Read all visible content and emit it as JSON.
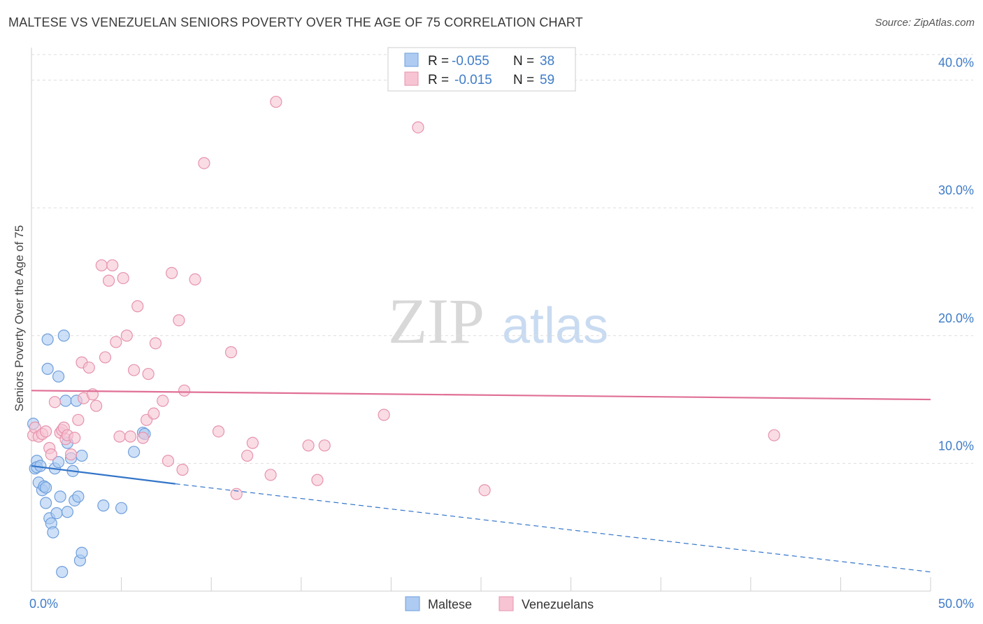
{
  "title": "MALTESE VS VENEZUELAN SENIORS POVERTY OVER THE AGE OF 75 CORRELATION CHART",
  "source": "Source: ZipAtlas.com",
  "watermark": {
    "zip": "ZIP",
    "atlas": "atlas"
  },
  "legend_box": {
    "rows": [
      {
        "r_label": "R =",
        "r_value": "-0.055",
        "n_label": "N =",
        "n_value": "38"
      },
      {
        "r_label": "R =",
        "r_value": "-0.015",
        "n_label": "N =",
        "n_value": "59"
      }
    ]
  },
  "colors": {
    "maltese_fill": "#aecbf2",
    "maltese_stroke": "#6f9fdc",
    "maltese_line": "#3375c9",
    "venezuelan_fill": "#f7c4d3",
    "venezuelan_stroke": "#e693ad",
    "venezuelan_line": "#e06f96",
    "axis_text": "#3f7cc8",
    "grid": "#dddddd"
  },
  "chart_data": {
    "type": "scatter",
    "title": "MALTESE VS VENEZUELAN SENIORS POVERTY OVER THE AGE OF 75 CORRELATION CHART",
    "xlabel": "",
    "ylabel": "Seniors Poverty Over the Age of 75",
    "xlim": [
      0,
      50
    ],
    "ylim": [
      0,
      42
    ],
    "x_tick_labels": [
      "0.0%",
      "50.0%"
    ],
    "y_ticks": [
      10,
      20,
      30,
      40
    ],
    "y_tick_labels": [
      "10.0%",
      "20.0%",
      "30.0%",
      "40.0%"
    ],
    "legend_position": "bottom-center",
    "series": [
      {
        "name": "Maltese",
        "r": -0.055,
        "n": 38,
        "trend": {
          "solid": [
            [
              0,
              9.8
            ],
            [
              8,
              8.4
            ]
          ],
          "dashed": [
            [
              8,
              8.4
            ],
            [
              50,
              1.5
            ]
          ]
        },
        "points": [
          [
            0.1,
            13.1
          ],
          [
            0.2,
            9.6
          ],
          [
            0.3,
            10.2
          ],
          [
            0.3,
            9.7
          ],
          [
            0.4,
            8.5
          ],
          [
            0.5,
            9.8
          ],
          [
            0.6,
            7.9
          ],
          [
            0.7,
            8.2
          ],
          [
            0.8,
            6.9
          ],
          [
            0.8,
            8.1
          ],
          [
            0.9,
            19.7
          ],
          [
            0.9,
            17.4
          ],
          [
            1.0,
            5.7
          ],
          [
            1.1,
            5.3
          ],
          [
            1.2,
            4.6
          ],
          [
            1.3,
            9.6
          ],
          [
            1.4,
            6.1
          ],
          [
            1.5,
            16.8
          ],
          [
            1.5,
            10.1
          ],
          [
            1.6,
            7.4
          ],
          [
            1.7,
            1.5
          ],
          [
            1.8,
            20.0
          ],
          [
            1.9,
            14.9
          ],
          [
            2.0,
            11.6
          ],
          [
            2.0,
            6.2
          ],
          [
            2.2,
            10.4
          ],
          [
            2.3,
            9.4
          ],
          [
            2.4,
            7.1
          ],
          [
            2.5,
            14.9
          ],
          [
            2.6,
            7.4
          ],
          [
            2.7,
            2.4
          ],
          [
            2.8,
            10.6
          ],
          [
            2.8,
            3.0
          ],
          [
            4.0,
            6.7
          ],
          [
            5.0,
            6.5
          ],
          [
            5.7,
            10.9
          ],
          [
            6.2,
            12.4
          ],
          [
            6.3,
            12.3
          ]
        ]
      },
      {
        "name": "Venezuelans",
        "r": -0.015,
        "n": 59,
        "trend": {
          "solid": [
            [
              0,
              15.7
            ],
            [
              50,
              15.0
            ]
          ]
        },
        "points": [
          [
            0.1,
            12.2
          ],
          [
            0.2,
            12.8
          ],
          [
            0.4,
            12.1
          ],
          [
            0.6,
            12.3
          ],
          [
            0.8,
            12.5
          ],
          [
            1.0,
            11.2
          ],
          [
            1.1,
            10.7
          ],
          [
            1.3,
            14.8
          ],
          [
            1.6,
            12.4
          ],
          [
            1.7,
            12.6
          ],
          [
            1.8,
            12.8
          ],
          [
            1.9,
            11.9
          ],
          [
            2.0,
            12.2
          ],
          [
            2.2,
            10.7
          ],
          [
            2.4,
            12.0
          ],
          [
            2.6,
            13.4
          ],
          [
            2.8,
            17.9
          ],
          [
            2.9,
            15.1
          ],
          [
            3.2,
            17.5
          ],
          [
            3.4,
            15.4
          ],
          [
            3.6,
            14.5
          ],
          [
            3.9,
            25.5
          ],
          [
            4.1,
            18.3
          ],
          [
            4.3,
            24.3
          ],
          [
            4.5,
            25.5
          ],
          [
            4.7,
            19.5
          ],
          [
            4.9,
            12.1
          ],
          [
            5.1,
            24.5
          ],
          [
            5.3,
            20.0
          ],
          [
            5.5,
            12.1
          ],
          [
            5.7,
            17.3
          ],
          [
            5.9,
            22.3
          ],
          [
            6.2,
            12.0
          ],
          [
            6.4,
            13.4
          ],
          [
            6.5,
            17.0
          ],
          [
            6.8,
            13.9
          ],
          [
            6.9,
            19.4
          ],
          [
            7.3,
            14.9
          ],
          [
            7.6,
            10.2
          ],
          [
            7.8,
            24.9
          ],
          [
            8.2,
            21.2
          ],
          [
            8.4,
            9.5
          ],
          [
            8.5,
            15.7
          ],
          [
            9.1,
            24.4
          ],
          [
            9.6,
            33.5
          ],
          [
            10.4,
            12.5
          ],
          [
            11.1,
            18.7
          ],
          [
            11.4,
            7.6
          ],
          [
            12.0,
            10.6
          ],
          [
            12.3,
            11.6
          ],
          [
            13.3,
            9.1
          ],
          [
            13.6,
            38.3
          ],
          [
            15.4,
            11.4
          ],
          [
            15.9,
            8.7
          ],
          [
            16.3,
            11.4
          ],
          [
            19.6,
            13.8
          ],
          [
            21.5,
            36.3
          ],
          [
            25.2,
            7.9
          ],
          [
            41.3,
            12.2
          ]
        ]
      }
    ]
  }
}
